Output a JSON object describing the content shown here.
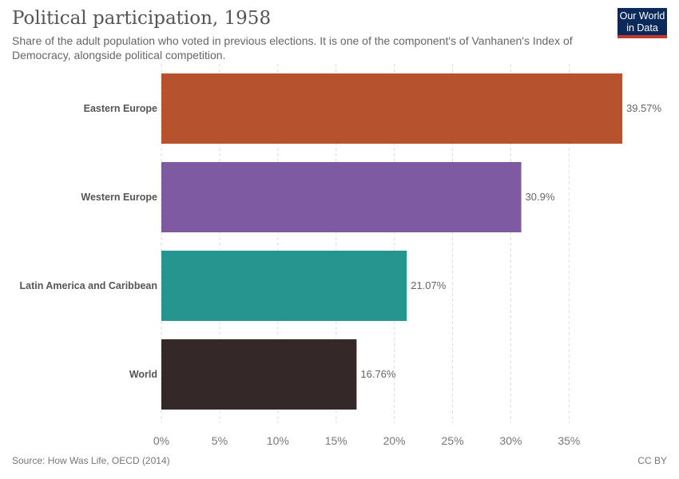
{
  "header": {
    "title": "Political participation, 1958",
    "subtitle": "Share of the adult population who voted in previous elections. It is one of the component's of Vanhanen's Index of Democracy, alongside political competition.",
    "logo_line1": "Our World",
    "logo_line2": "in Data"
  },
  "footer": {
    "source": "Source: How Was Life, OECD (2014)",
    "license": "CC BY"
  },
  "chart_data": {
    "type": "bar",
    "orientation": "horizontal",
    "title": "Political participation, 1958",
    "categories": [
      "Eastern Europe",
      "Western Europe",
      "Latin America and Caribbean",
      "World"
    ],
    "values": [
      39.57,
      30.9,
      21.07,
      16.76
    ],
    "value_labels": [
      "39.57%",
      "30.9%",
      "21.07%",
      "16.76%"
    ],
    "colors": [
      "#b6532e",
      "#7e5aa2",
      "#269590",
      "#352829"
    ],
    "xlim": [
      0,
      39.57
    ],
    "xticks": [
      0,
      5,
      10,
      15,
      20,
      25,
      30,
      35
    ],
    "xtick_labels": [
      "0%",
      "5%",
      "10%",
      "15%",
      "20%",
      "25%",
      "30%",
      "35%"
    ],
    "grid": true,
    "xlabel": "",
    "ylabel": ""
  }
}
